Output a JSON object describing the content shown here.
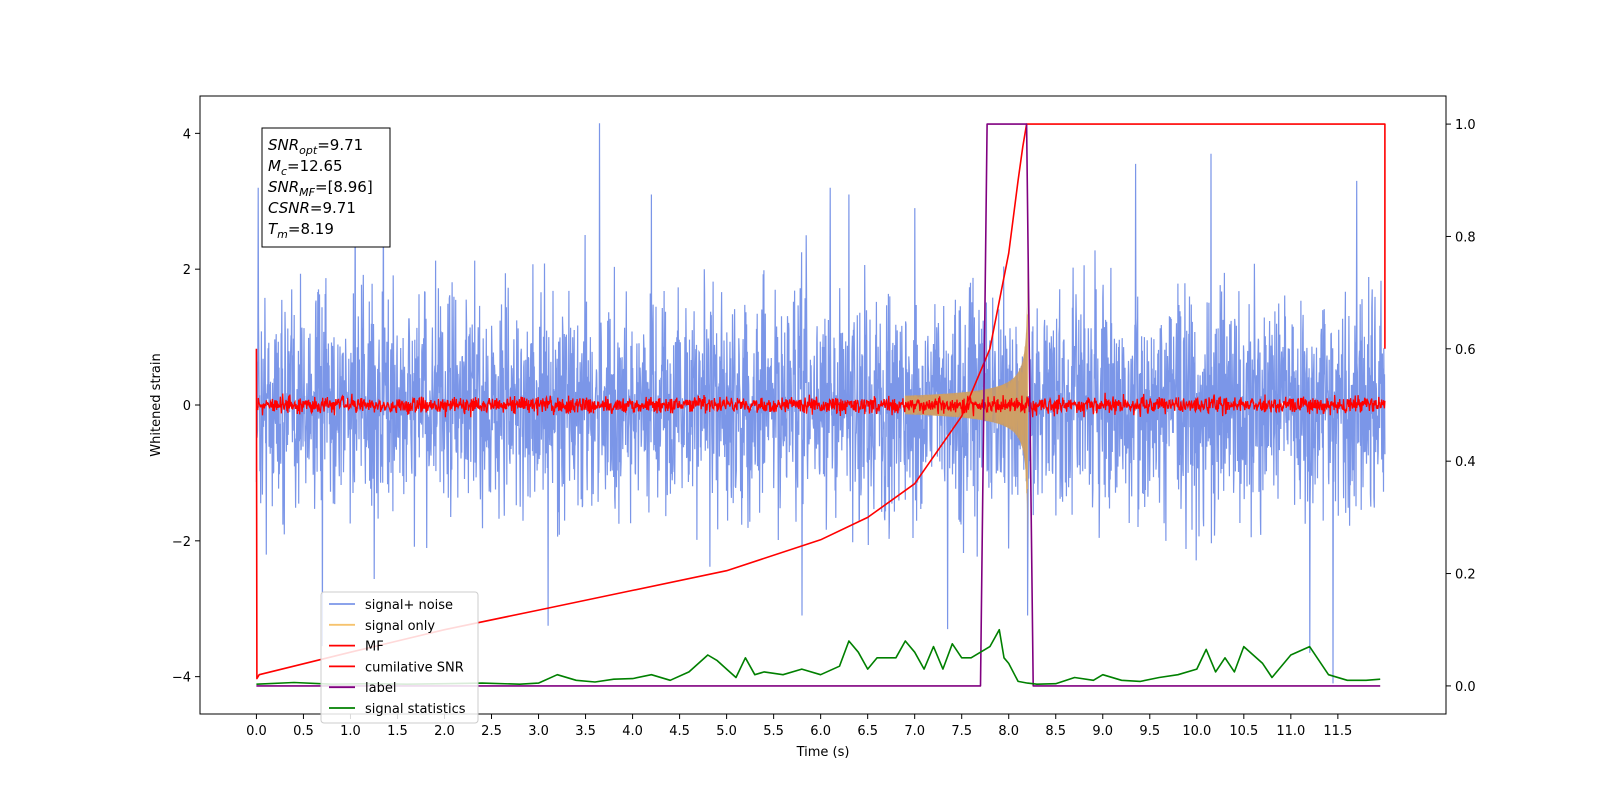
{
  "chart_data": {
    "type": "line",
    "title": "",
    "xlabel": "Time (s)",
    "ylabel": "Whitened strain",
    "xlim": [
      -0.6,
      12.65
    ],
    "ylim": [
      -4.55,
      4.55
    ],
    "y2lim": [
      -0.05,
      1.05
    ],
    "x_ticks": [
      0.0,
      0.5,
      1.0,
      1.5,
      2.0,
      2.5,
      3.0,
      3.5,
      4.0,
      4.5,
      5.0,
      5.5,
      6.0,
      6.5,
      7.0,
      7.5,
      8.0,
      8.5,
      9.0,
      9.5,
      10.0,
      10.5,
      11.0,
      11.5
    ],
    "x_tick_labels": [
      "0.0",
      "0.5",
      "1.0",
      "1.5",
      "2.0",
      "2.5",
      "3.0",
      "3.5",
      "4.0",
      "4.5",
      "5.0",
      "5.5",
      "6.0",
      "6.5",
      "7.0",
      "7.5",
      "8.0",
      "8.5",
      "9.0",
      "9.5",
      "10.0",
      "10.5",
      "11.0",
      "11.5"
    ],
    "y_ticks": [
      -4,
      -2,
      0,
      2,
      4
    ],
    "y_tick_labels": [
      "−4",
      "−2",
      "0",
      "2",
      "4"
    ],
    "y2_ticks": [
      0.0,
      0.2,
      0.4,
      0.6,
      0.8,
      1.0
    ],
    "y2_tick_labels": [
      "0.0",
      "0.2",
      "0.4",
      "0.6",
      "0.8",
      "1.0"
    ],
    "grid": false,
    "legend_position": "bottom-left",
    "annotation": [
      {
        "var": "SNR",
        "sub": "opt",
        "text": "=9.71"
      },
      {
        "var": "M",
        "sub": "c",
        "text": "=12.65"
      },
      {
        "var": "SNR",
        "sub": "MF",
        "text": "=[8.96]"
      },
      {
        "var": "CSNR",
        "sub": "",
        "text": "=9.71"
      },
      {
        "var": "T",
        "sub": "m",
        "text": "=8.19"
      }
    ],
    "series": [
      {
        "name": "signal+ noise",
        "color": "#7b96e8",
        "axis": "left",
        "style": "noise",
        "x_range": [
          0.0,
          12.0
        ],
        "envelope": [
          [
            0.0,
            1.4
          ],
          [
            1.0,
            1.45
          ],
          [
            2.0,
            1.35
          ],
          [
            3.0,
            1.4
          ],
          [
            4.0,
            1.35
          ],
          [
            5.0,
            1.4
          ],
          [
            6.0,
            1.4
          ],
          [
            7.0,
            1.4
          ],
          [
            8.0,
            1.45
          ],
          [
            9.0,
            1.4
          ],
          [
            10.0,
            1.45
          ],
          [
            11.0,
            1.4
          ],
          [
            12.0,
            1.3
          ]
        ],
        "spikes": [
          [
            3.65,
            4.15
          ],
          [
            0.02,
            3.2
          ],
          [
            0.7,
            -3.55
          ],
          [
            1.35,
            3.35
          ],
          [
            1.05,
            3.1
          ],
          [
            5.8,
            -3.1
          ],
          [
            9.35,
            3.55
          ],
          [
            10.15,
            3.7
          ],
          [
            11.7,
            3.3
          ],
          [
            11.45,
            -4.1
          ],
          [
            11.2,
            -3.65
          ],
          [
            8.2,
            -3.1
          ],
          [
            6.1,
            3.2
          ],
          [
            6.3,
            3.1
          ],
          [
            4.2,
            3.1
          ],
          [
            3.1,
            -3.25
          ],
          [
            7.35,
            -3.3
          ],
          [
            7.0,
            2.9
          ]
        ]
      },
      {
        "name": "signal only",
        "color": "#f6c36e",
        "axis": "left",
        "style": "chirp",
        "x_range": [
          6.9,
          8.2
        ],
        "chirp_peak": 2.0
      },
      {
        "name": "MF",
        "color": "#ff0000",
        "axis": "left",
        "style": "mf",
        "x_range": [
          0.0,
          12.0
        ],
        "band": 0.13
      },
      {
        "name": "cumilative SNR",
        "color": "#ff0000",
        "axis": "right",
        "style": "line",
        "x": [
          0.0,
          0.005,
          0.03,
          1.0,
          2.0,
          3.0,
          4.0,
          5.0,
          6.0,
          6.5,
          7.0,
          7.5,
          7.8,
          8.0,
          8.1,
          8.15,
          8.19,
          12.0,
          12.0
        ],
        "y": [
          0.6,
          0.013,
          0.02,
          0.06,
          0.1,
          0.135,
          0.17,
          0.205,
          0.26,
          0.3,
          0.36,
          0.48,
          0.6,
          0.77,
          0.9,
          0.96,
          1.0,
          1.0,
          0.6
        ]
      },
      {
        "name": "label",
        "color": "#800080",
        "axis": "right",
        "style": "line",
        "x": [
          0.0,
          7.7,
          7.77,
          8.19,
          8.26,
          11.95
        ],
        "y": [
          0.0,
          0.0,
          1.0,
          1.0,
          0.0,
          0.0
        ]
      },
      {
        "name": "signal statistics",
        "color": "#008000",
        "axis": "right",
        "style": "line",
        "x": [
          0.0,
          0.4,
          0.8,
          1.2,
          1.6,
          2.0,
          2.4,
          2.8,
          3.0,
          3.2,
          3.4,
          3.6,
          3.8,
          4.0,
          4.2,
          4.4,
          4.6,
          4.8,
          4.9,
          5.0,
          5.1,
          5.2,
          5.3,
          5.4,
          5.6,
          5.8,
          6.0,
          6.2,
          6.3,
          6.4,
          6.5,
          6.6,
          6.8,
          6.9,
          7.0,
          7.1,
          7.2,
          7.3,
          7.4,
          7.5,
          7.6,
          7.7,
          7.8,
          7.9,
          7.95,
          8.0,
          8.1,
          8.2,
          8.3,
          8.5,
          8.7,
          8.9,
          9.0,
          9.2,
          9.4,
          9.6,
          9.8,
          10.0,
          10.1,
          10.2,
          10.3,
          10.4,
          10.5,
          10.7,
          10.8,
          11.0,
          11.2,
          11.4,
          11.6,
          11.8,
          11.95
        ],
        "y": [
          0.003,
          0.006,
          0.003,
          0.004,
          0.003,
          0.004,
          0.005,
          0.003,
          0.005,
          0.02,
          0.01,
          0.007,
          0.012,
          0.013,
          0.02,
          0.01,
          0.025,
          0.055,
          0.045,
          0.03,
          0.015,
          0.05,
          0.02,
          0.025,
          0.02,
          0.03,
          0.02,
          0.035,
          0.08,
          0.06,
          0.03,
          0.05,
          0.05,
          0.08,
          0.06,
          0.03,
          0.07,
          0.03,
          0.075,
          0.05,
          0.05,
          0.06,
          0.07,
          0.1,
          0.05,
          0.04,
          0.008,
          0.005,
          0.003,
          0.004,
          0.015,
          0.01,
          0.02,
          0.01,
          0.008,
          0.015,
          0.02,
          0.03,
          0.065,
          0.025,
          0.05,
          0.025,
          0.07,
          0.04,
          0.015,
          0.055,
          0.07,
          0.02,
          0.01,
          0.01,
          0.012
        ]
      }
    ]
  }
}
